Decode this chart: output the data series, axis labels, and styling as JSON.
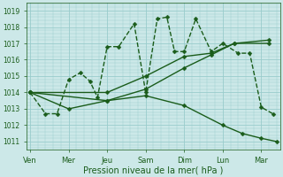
{
  "xlabel": "Pression niveau de la mer( hPa )",
  "bg_color": "#cce8e8",
  "grid_color": "#99cccc",
  "line_color": "#1a5c1a",
  "ylim": [
    1010.5,
    1019.5
  ],
  "yticks": [
    1011,
    1012,
    1013,
    1014,
    1015,
    1016,
    1017,
    1018,
    1019
  ],
  "day_labels": [
    "Ven",
    "Mer",
    "Jeu",
    "Sam",
    "Dim",
    "Lun",
    "Mar"
  ],
  "day_positions": [
    0,
    1,
    2,
    3,
    4,
    5,
    6
  ],
  "xlim": [
    -0.1,
    6.5
  ],
  "series": [
    {
      "x": [
        0,
        0.4,
        0.7,
        1.0,
        1.3,
        1.55,
        1.75,
        2.0,
        2.3,
        2.7,
        3.0,
        3.3,
        3.55,
        3.75,
        4.0,
        4.3,
        4.7,
        5.0,
        5.4,
        5.7,
        6.0,
        6.3
      ],
      "y": [
        1014,
        1012.7,
        1012.7,
        1014.8,
        1015.2,
        1014.7,
        1013.7,
        1016.8,
        1016.8,
        1018.2,
        1014.0,
        1018.5,
        1018.6,
        1016.5,
        1016.5,
        1018.5,
        1016.5,
        1017.0,
        1016.4,
        1016.4,
        1013.1,
        1012.7
      ],
      "dashed": true,
      "lw": 1.0,
      "ms": 2.5
    },
    {
      "x": [
        0,
        2.0,
        3.0,
        4.0,
        4.7,
        5.3,
        6.2
      ],
      "y": [
        1014,
        1014,
        1015,
        1016.2,
        1016.4,
        1017.0,
        1017.0
      ],
      "dashed": false,
      "lw": 1.0,
      "ms": 2.5
    },
    {
      "x": [
        0,
        2.0,
        3.0,
        4.0,
        4.7,
        5.3,
        6.2
      ],
      "y": [
        1014,
        1013.5,
        1014.2,
        1015.5,
        1016.3,
        1017.0,
        1017.2
      ],
      "dashed": false,
      "lw": 1.0,
      "ms": 2.5
    },
    {
      "x": [
        0,
        1.0,
        2.0,
        3.0,
        4.0,
        5.0,
        5.5,
        6.0,
        6.4
      ],
      "y": [
        1014,
        1013.0,
        1013.5,
        1013.8,
        1013.2,
        1012.0,
        1011.5,
        1011.2,
        1011.0
      ],
      "dashed": false,
      "lw": 1.0,
      "ms": 2.5
    }
  ]
}
